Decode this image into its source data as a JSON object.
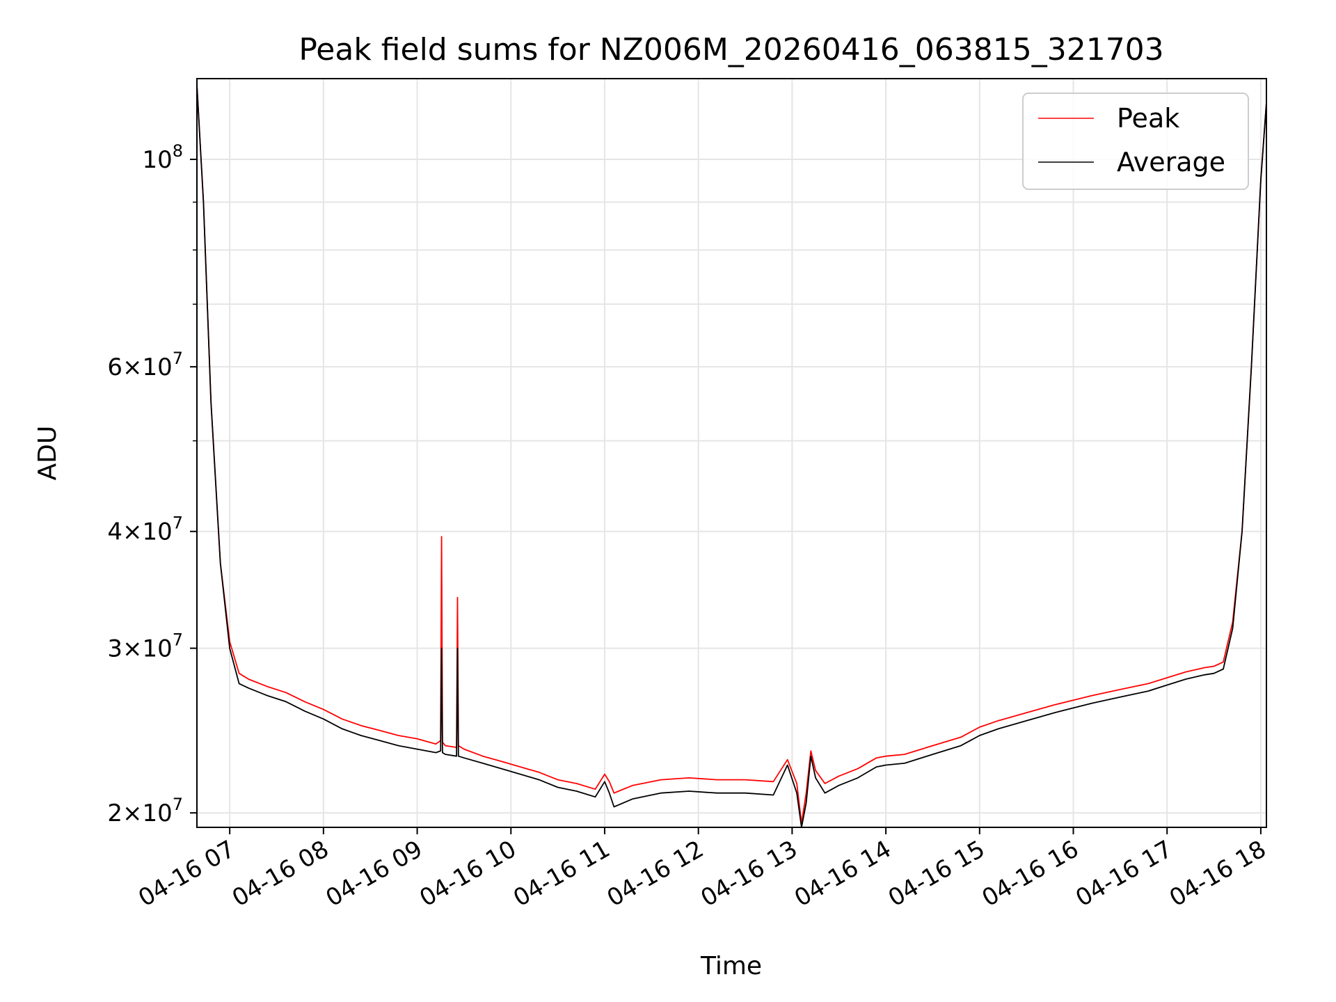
{
  "chart_data": {
    "type": "line",
    "title": "Peak field sums for NZ006M_20260416_063815_321703",
    "xlabel": "Time",
    "ylabel": "ADU",
    "x_unit": "hour of 2026-04-16",
    "xlim": [
      6.65,
      18.06
    ],
    "ylim": [
      19300000,
      122000000
    ],
    "yscale": "log",
    "grid": true,
    "legend_position": "upper right",
    "x_ticks": [
      {
        "value": 7,
        "label": "04-16 07"
      },
      {
        "value": 8,
        "label": "04-16 08"
      },
      {
        "value": 9,
        "label": "04-16 09"
      },
      {
        "value": 10,
        "label": "04-16 10"
      },
      {
        "value": 11,
        "label": "04-16 11"
      },
      {
        "value": 12,
        "label": "04-16 12"
      },
      {
        "value": 13,
        "label": "04-16 13"
      },
      {
        "value": 14,
        "label": "04-16 14"
      },
      {
        "value": 15,
        "label": "04-16 15"
      },
      {
        "value": 16,
        "label": "04-16 16"
      },
      {
        "value": 17,
        "label": "04-16 17"
      },
      {
        "value": 18,
        "label": "04-16 18"
      }
    ],
    "y_ticks": [
      {
        "value": 20000000,
        "base": "2×10",
        "exp": "7"
      },
      {
        "value": 30000000,
        "base": "3×10",
        "exp": "7"
      },
      {
        "value": 40000000,
        "base": "4×10",
        "exp": "7"
      },
      {
        "value": 60000000,
        "base": "6×10",
        "exp": "7"
      },
      {
        "value": 100000000,
        "base": "10",
        "exp": "8"
      }
    ],
    "y_minor_ticks": [
      50000000,
      70000000,
      80000000,
      90000000
    ],
    "series": [
      {
        "name": "Peak",
        "color": "#ff0000",
        "x": [
          6.65,
          6.72,
          6.8,
          6.9,
          7.0,
          7.1,
          7.2,
          7.4,
          7.6,
          7.8,
          8.0,
          8.2,
          8.4,
          8.6,
          8.8,
          9.0,
          9.2,
          9.25,
          9.26,
          9.27,
          9.3,
          9.42,
          9.43,
          9.44,
          9.5,
          9.7,
          9.9,
          10.1,
          10.3,
          10.5,
          10.7,
          10.9,
          11.0,
          11.05,
          11.1,
          11.3,
          11.6,
          11.9,
          12.2,
          12.5,
          12.8,
          12.95,
          13.05,
          13.1,
          13.15,
          13.2,
          13.25,
          13.35,
          13.5,
          13.7,
          13.9,
          14.0,
          14.2,
          14.5,
          14.8,
          15.0,
          15.2,
          15.5,
          15.8,
          16.0,
          16.2,
          16.5,
          16.8,
          17.0,
          17.2,
          17.4,
          17.5,
          17.6,
          17.7,
          17.8,
          17.9,
          18.0,
          18.06
        ],
        "y": [
          120000000,
          90000000,
          55000000,
          37000000,
          30500000,
          28200000,
          27800000,
          27300000,
          26900000,
          26300000,
          25800000,
          25200000,
          24800000,
          24500000,
          24200000,
          24000000,
          23700000,
          23900000,
          39500000,
          23800000,
          23600000,
          23500000,
          34000000,
          23600000,
          23400000,
          23000000,
          22700000,
          22400000,
          22100000,
          21700000,
          21500000,
          21200000,
          22000000,
          21600000,
          21000000,
          21400000,
          21700000,
          21800000,
          21700000,
          21700000,
          21600000,
          22800000,
          21500000,
          19500000,
          21000000,
          23300000,
          22200000,
          21500000,
          21900000,
          22300000,
          22900000,
          23000000,
          23100000,
          23600000,
          24100000,
          24700000,
          25100000,
          25600000,
          26100000,
          26400000,
          26700000,
          27100000,
          27500000,
          27900000,
          28300000,
          28600000,
          28700000,
          29000000,
          32000000,
          40000000,
          60000000,
          95000000,
          115000000
        ]
      },
      {
        "name": "Average",
        "color": "#000000",
        "x": [
          6.65,
          6.72,
          6.8,
          6.9,
          7.0,
          7.1,
          7.2,
          7.4,
          7.6,
          7.8,
          8.0,
          8.2,
          8.4,
          8.6,
          8.8,
          9.0,
          9.2,
          9.25,
          9.26,
          9.27,
          9.3,
          9.42,
          9.43,
          9.44,
          9.5,
          9.7,
          9.9,
          10.1,
          10.3,
          10.5,
          10.7,
          10.9,
          11.0,
          11.05,
          11.1,
          11.3,
          11.6,
          11.9,
          12.2,
          12.5,
          12.8,
          12.95,
          13.05,
          13.1,
          13.15,
          13.2,
          13.25,
          13.35,
          13.5,
          13.7,
          13.9,
          14.0,
          14.2,
          14.5,
          14.8,
          15.0,
          15.2,
          15.5,
          15.8,
          16.0,
          16.2,
          16.5,
          16.8,
          17.0,
          17.2,
          17.4,
          17.5,
          17.6,
          17.7,
          17.8,
          17.9,
          18.0,
          18.06
        ],
        "y": [
          120000000,
          90000000,
          55000000,
          37000000,
          30000000,
          27500000,
          27200000,
          26700000,
          26300000,
          25700000,
          25200000,
          24600000,
          24200000,
          23900000,
          23600000,
          23400000,
          23200000,
          23300000,
          30000000,
          23200000,
          23100000,
          23000000,
          30000000,
          23000000,
          22900000,
          22600000,
          22300000,
          22000000,
          21700000,
          21300000,
          21100000,
          20800000,
          21600000,
          21000000,
          20300000,
          20700000,
          21000000,
          21100000,
          21000000,
          21000000,
          20900000,
          22500000,
          21000000,
          19300000,
          20500000,
          23000000,
          21800000,
          21000000,
          21400000,
          21800000,
          22400000,
          22500000,
          22600000,
          23100000,
          23600000,
          24200000,
          24600000,
          25100000,
          25600000,
          25900000,
          26200000,
          26600000,
          27000000,
          27400000,
          27800000,
          28100000,
          28200000,
          28500000,
          31500000,
          40000000,
          60000000,
          95000000,
          115000000
        ]
      }
    ]
  }
}
